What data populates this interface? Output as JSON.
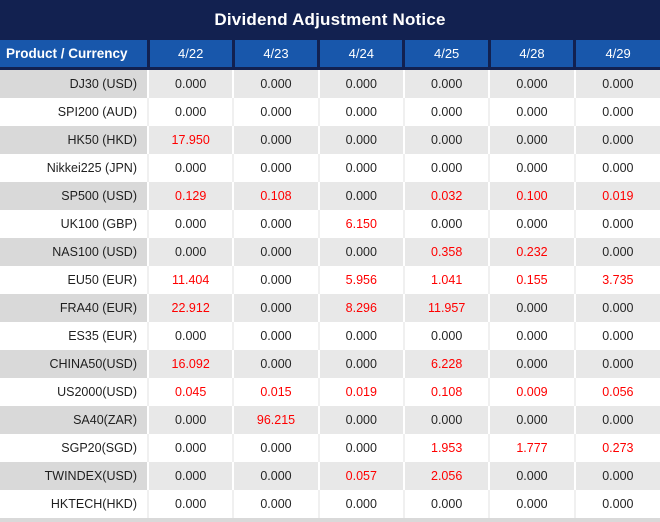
{
  "title": "Dividend Adjustment Notice",
  "table": {
    "product_header": "Product / Currency",
    "date_headers": [
      "4/22",
      "4/23",
      "4/24",
      "4/25",
      "4/28",
      "4/29"
    ],
    "rows": [
      {
        "product": "DJ30 (USD)",
        "values": [
          "0.000",
          "0.000",
          "0.000",
          "0.000",
          "0.000",
          "0.000"
        ],
        "red": [
          false,
          false,
          false,
          false,
          false,
          false
        ]
      },
      {
        "product": "SPI200 (AUD)",
        "values": [
          "0.000",
          "0.000",
          "0.000",
          "0.000",
          "0.000",
          "0.000"
        ],
        "red": [
          false,
          false,
          false,
          false,
          false,
          false
        ]
      },
      {
        "product": "HK50 (HKD)",
        "values": [
          "17.950",
          "0.000",
          "0.000",
          "0.000",
          "0.000",
          "0.000"
        ],
        "red": [
          true,
          false,
          false,
          false,
          false,
          false
        ]
      },
      {
        "product": "Nikkei225 (JPN)",
        "values": [
          "0.000",
          "0.000",
          "0.000",
          "0.000",
          "0.000",
          "0.000"
        ],
        "red": [
          false,
          false,
          false,
          false,
          false,
          false
        ]
      },
      {
        "product": "SP500 (USD)",
        "values": [
          "0.129",
          "0.108",
          "0.000",
          "0.032",
          "0.100",
          "0.019"
        ],
        "red": [
          true,
          true,
          false,
          true,
          true,
          true
        ]
      },
      {
        "product": "UK100 (GBP)",
        "values": [
          "0.000",
          "0.000",
          "6.150",
          "0.000",
          "0.000",
          "0.000"
        ],
        "red": [
          false,
          false,
          true,
          false,
          false,
          false
        ]
      },
      {
        "product": "NAS100 (USD)",
        "values": [
          "0.000",
          "0.000",
          "0.000",
          "0.358",
          "0.232",
          "0.000"
        ],
        "red": [
          false,
          false,
          false,
          true,
          true,
          false
        ]
      },
      {
        "product": "EU50 (EUR)",
        "values": [
          "11.404",
          "0.000",
          "5.956",
          "1.041",
          "0.155",
          "3.735"
        ],
        "red": [
          true,
          false,
          true,
          true,
          true,
          true
        ]
      },
      {
        "product": "FRA40 (EUR)",
        "values": [
          "22.912",
          "0.000",
          "8.296",
          "11.957",
          "0.000",
          "0.000"
        ],
        "red": [
          true,
          false,
          true,
          true,
          false,
          false
        ]
      },
      {
        "product": "ES35 (EUR)",
        "values": [
          "0.000",
          "0.000",
          "0.000",
          "0.000",
          "0.000",
          "0.000"
        ],
        "red": [
          false,
          false,
          false,
          false,
          false,
          false
        ]
      },
      {
        "product": "CHINA50(USD)",
        "values": [
          "16.092",
          "0.000",
          "0.000",
          "6.228",
          "0.000",
          "0.000"
        ],
        "red": [
          true,
          false,
          false,
          true,
          false,
          false
        ]
      },
      {
        "product": "US2000(USD)",
        "values": [
          "0.045",
          "0.015",
          "0.019",
          "0.108",
          "0.009",
          "0.056"
        ],
        "red": [
          true,
          true,
          true,
          true,
          true,
          true
        ]
      },
      {
        "product": "SA40(ZAR)",
        "values": [
          "0.000",
          "96.215",
          "0.000",
          "0.000",
          "0.000",
          "0.000"
        ],
        "red": [
          false,
          true,
          false,
          false,
          false,
          false
        ]
      },
      {
        "product": "SGP20(SGD)",
        "values": [
          "0.000",
          "0.000",
          "0.000",
          "1.953",
          "1.777",
          "0.273"
        ],
        "red": [
          false,
          false,
          false,
          true,
          true,
          true
        ]
      },
      {
        "product": "TWINDEX(USD)",
        "values": [
          "0.000",
          "0.000",
          "0.057",
          "2.056",
          "0.000",
          "0.000"
        ],
        "red": [
          false,
          false,
          true,
          true,
          false,
          false
        ]
      },
      {
        "product": "HKTECH(HKD)",
        "values": [
          "0.000",
          "0.000",
          "0.000",
          "0.000",
          "0.000",
          "0.000"
        ],
        "red": [
          false,
          false,
          false,
          false,
          false,
          false
        ]
      }
    ]
  },
  "colors": {
    "title_bg": "#122150",
    "header_bg": "#1857ab",
    "header_text": "#ffffff",
    "stripe_product_bg": "#d9d9d9",
    "stripe_value_bg": "#e8e8e8",
    "row_white_bg": "#ffffff",
    "value_text": "#262626",
    "highlight_red": "#ff0000"
  }
}
